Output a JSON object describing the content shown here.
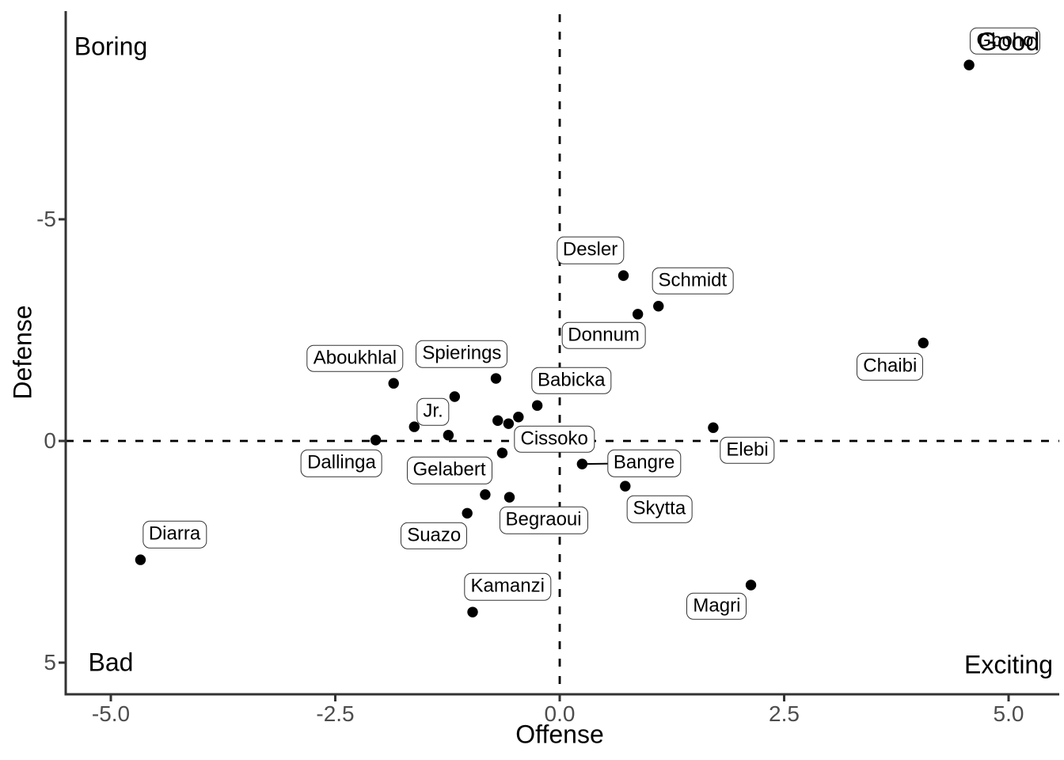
{
  "chart_data": {
    "type": "scatter",
    "title": "",
    "xlabel": "Offense",
    "ylabel": "Defense",
    "grid": false,
    "background": "#ffffff",
    "point_color": "#000000",
    "axis_color": "#333333",
    "tick_label_color": "#4d4d4d",
    "label_box": {
      "fill": "#ffffff",
      "border": "#333333"
    },
    "x_axis": {
      "tick_values": [
        -5.0,
        -2.5,
        0.0,
        2.5,
        5.0
      ],
      "tick_labels": [
        "-5.0",
        "-2.5",
        "0.0",
        "2.5",
        "5.0"
      ],
      "range": [
        -5.5,
        5.55
      ]
    },
    "y_axis": {
      "tick_values": [
        -5,
        0,
        5
      ],
      "tick_labels": [
        "-5",
        "0",
        "5"
      ],
      "range": [
        -9.7,
        5.7
      ],
      "reversed": true
    },
    "reference_lines": [
      {
        "axis": "v",
        "value": 0,
        "style": "dashed"
      },
      {
        "axis": "h",
        "value": 0,
        "style": "dashed"
      }
    ],
    "corner_annotations": [
      {
        "text": "Boring",
        "x": -5.0,
        "y": -8.9,
        "corner": "top-left"
      },
      {
        "text": "Good",
        "x": 5.0,
        "y": -9.0,
        "corner": "top-right"
      },
      {
        "text": "Bad",
        "x": -5.0,
        "y": 5.0,
        "corner": "bottom-left"
      },
      {
        "text": "Exciting",
        "x": 5.0,
        "y": 5.05,
        "corner": "bottom-right"
      }
    ],
    "players": [
      {
        "name": "Gboho",
        "offense": 4.56,
        "defense": -8.48,
        "label_x": 4.96,
        "label_y": -9.02
      },
      {
        "name": "Desler",
        "offense": 0.71,
        "defense": -3.73,
        "label_x": 0.34,
        "label_y": -4.3
      },
      {
        "name": "Schmidt",
        "offense": 1.1,
        "defense": -3.04,
        "label_x": 1.48,
        "label_y": -3.61
      },
      {
        "name": "Donnum",
        "offense": 0.87,
        "defense": -2.86,
        "label_x": 0.49,
        "label_y": -2.38
      },
      {
        "name": "Chaibi",
        "offense": 4.05,
        "defense": -2.21,
        "label_x": 3.68,
        "label_y": -1.68
      },
      {
        "name": "Aboukhlal",
        "offense": -1.85,
        "defense": -1.3,
        "label_x": -2.28,
        "label_y": -1.86
      },
      {
        "name": "Spierings",
        "offense": -0.71,
        "defense": -1.41,
        "label_x": -1.09,
        "label_y": -1.96
      },
      {
        "name": "Babicka",
        "offense": -0.25,
        "defense": -0.8,
        "label_x": 0.13,
        "label_y": -1.36
      },
      {
        "name": "Jr.",
        "offense": -1.62,
        "defense": -0.32,
        "label_x": -1.41,
        "label_y": -0.66
      },
      {
        "name": "Dallinga",
        "offense": -2.05,
        "defense": -0.02,
        "label_x": -2.43,
        "label_y": 0.5
      },
      {
        "name": "Cissoko",
        "offense": -0.64,
        "defense": 0.27,
        "label_x": -0.06,
        "label_y": -0.04
      },
      {
        "name": "Bangre",
        "offense": 0.25,
        "defense": 0.52,
        "label_x": 0.94,
        "label_y": 0.5,
        "leader": true
      },
      {
        "name": "Elebi",
        "offense": 1.71,
        "defense": -0.3,
        "label_x": 2.09,
        "label_y": 0.21
      },
      {
        "name": "Gelabert",
        "offense": -0.83,
        "defense": 1.21,
        "label_x": -1.23,
        "label_y": 0.66
      },
      {
        "name": "Skytta",
        "offense": 0.73,
        "defense": 1.02,
        "label_x": 1.11,
        "label_y": 1.54
      },
      {
        "name": "Begraoui",
        "offense": -0.56,
        "defense": 1.27,
        "label_x": -0.18,
        "label_y": 1.79
      },
      {
        "name": "Suazo",
        "offense": -1.03,
        "defense": 1.63,
        "label_x": -1.4,
        "label_y": 2.14
      },
      {
        "name": "Kamanzi",
        "offense": -0.97,
        "defense": 3.86,
        "label_x": -0.58,
        "label_y": 3.29
      },
      {
        "name": "Diarra",
        "offense": -4.67,
        "defense": 2.68,
        "label_x": -4.29,
        "label_y": 2.11
      },
      {
        "name": "Magri",
        "offense": 2.13,
        "defense": 3.25,
        "label_x": 1.75,
        "label_y": 3.73
      }
    ],
    "unlabeled_points": [
      {
        "offense": -1.17,
        "defense": -1.0
      },
      {
        "offense": -1.24,
        "defense": -0.13
      },
      {
        "offense": -0.69,
        "defense": -0.46
      },
      {
        "offense": -0.57,
        "defense": -0.39
      },
      {
        "offense": -0.46,
        "defense": -0.54
      }
    ]
  }
}
